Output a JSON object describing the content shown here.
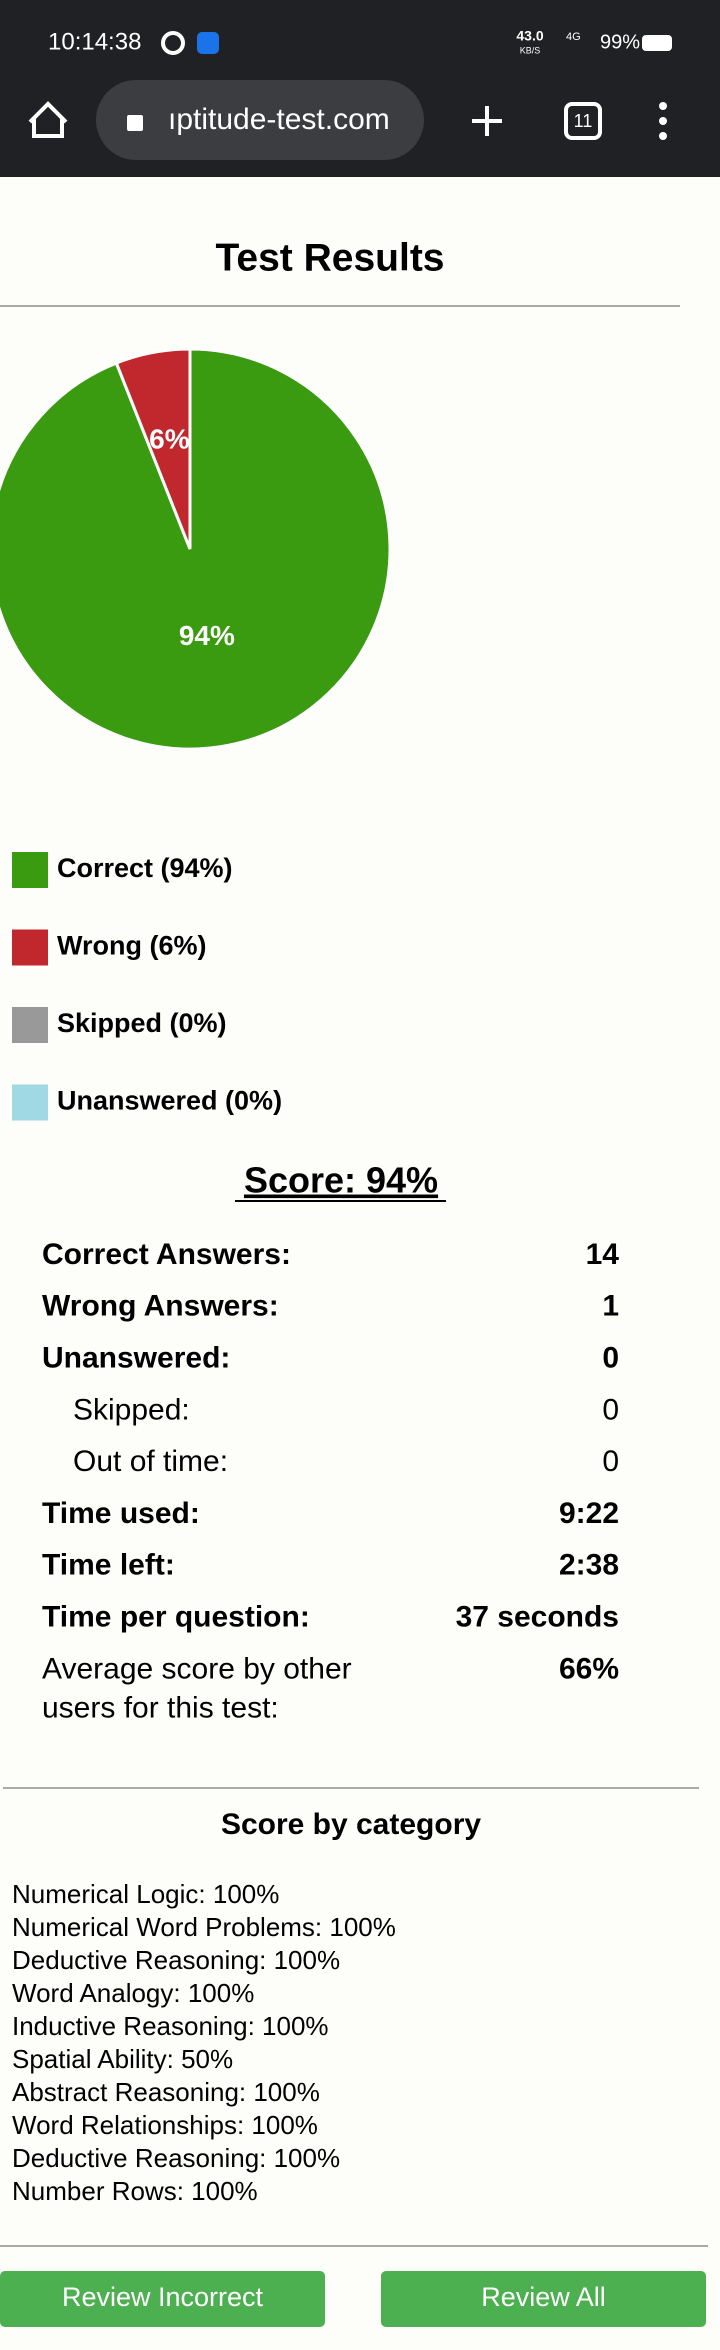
{
  "status_bar": {
    "time": "10:14:38",
    "speed": "43.0",
    "speed_unit": "KB/S",
    "network": "4G",
    "battery": "99%"
  },
  "browser": {
    "url": "ıptitude-test.com",
    "tabs": "11"
  },
  "page": {
    "title": "Test Results"
  },
  "chart_data": {
    "type": "pie",
    "categories": [
      "Correct (94%)",
      "Wrong (6%)",
      "Skipped (0%)",
      "Unanswered (0%)"
    ],
    "values": [
      94,
      6,
      0,
      0
    ],
    "value_labels": [
      "94%",
      "6%",
      null,
      null
    ],
    "colors": [
      "#3a9a10",
      "#c0282d",
      "#999999",
      "#a0d8e4"
    ]
  },
  "score": {
    "heading": "Score: 94%",
    "rows": [
      {
        "label": "Correct Answers:",
        "value": "14"
      },
      {
        "label": "Wrong Answers:",
        "value": "1"
      },
      {
        "label": "Unanswered:",
        "value": "0",
        "sub_rows": [
          {
            "label": "Skipped:",
            "value": "0"
          },
          {
            "label": "Out of time:",
            "value": "0"
          }
        ]
      },
      {
        "label": "Time used:",
        "value": "9:22"
      },
      {
        "label": "Time left:",
        "value": "2:38"
      },
      {
        "label": "Time per question:",
        "value": "37 seconds"
      }
    ],
    "average": {
      "label_lines": [
        "Average score by other",
        "users for this test:"
      ],
      "value": "66%"
    }
  },
  "categories": {
    "heading": "Score by category",
    "items": [
      "Numerical Logic: 100%",
      "Numerical Word Problems: 100%",
      "Deductive Reasoning: 100%",
      "Word Analogy: 100%",
      "Inductive Reasoning: 100%",
      "Spatial Ability: 50%",
      "Abstract Reasoning: 100%",
      "Word Relationships: 100%",
      "Deductive Reasoning: 100%",
      "Number Rows: 100%"
    ]
  },
  "buttons": [
    "Review Incorrect",
    "Review All"
  ]
}
